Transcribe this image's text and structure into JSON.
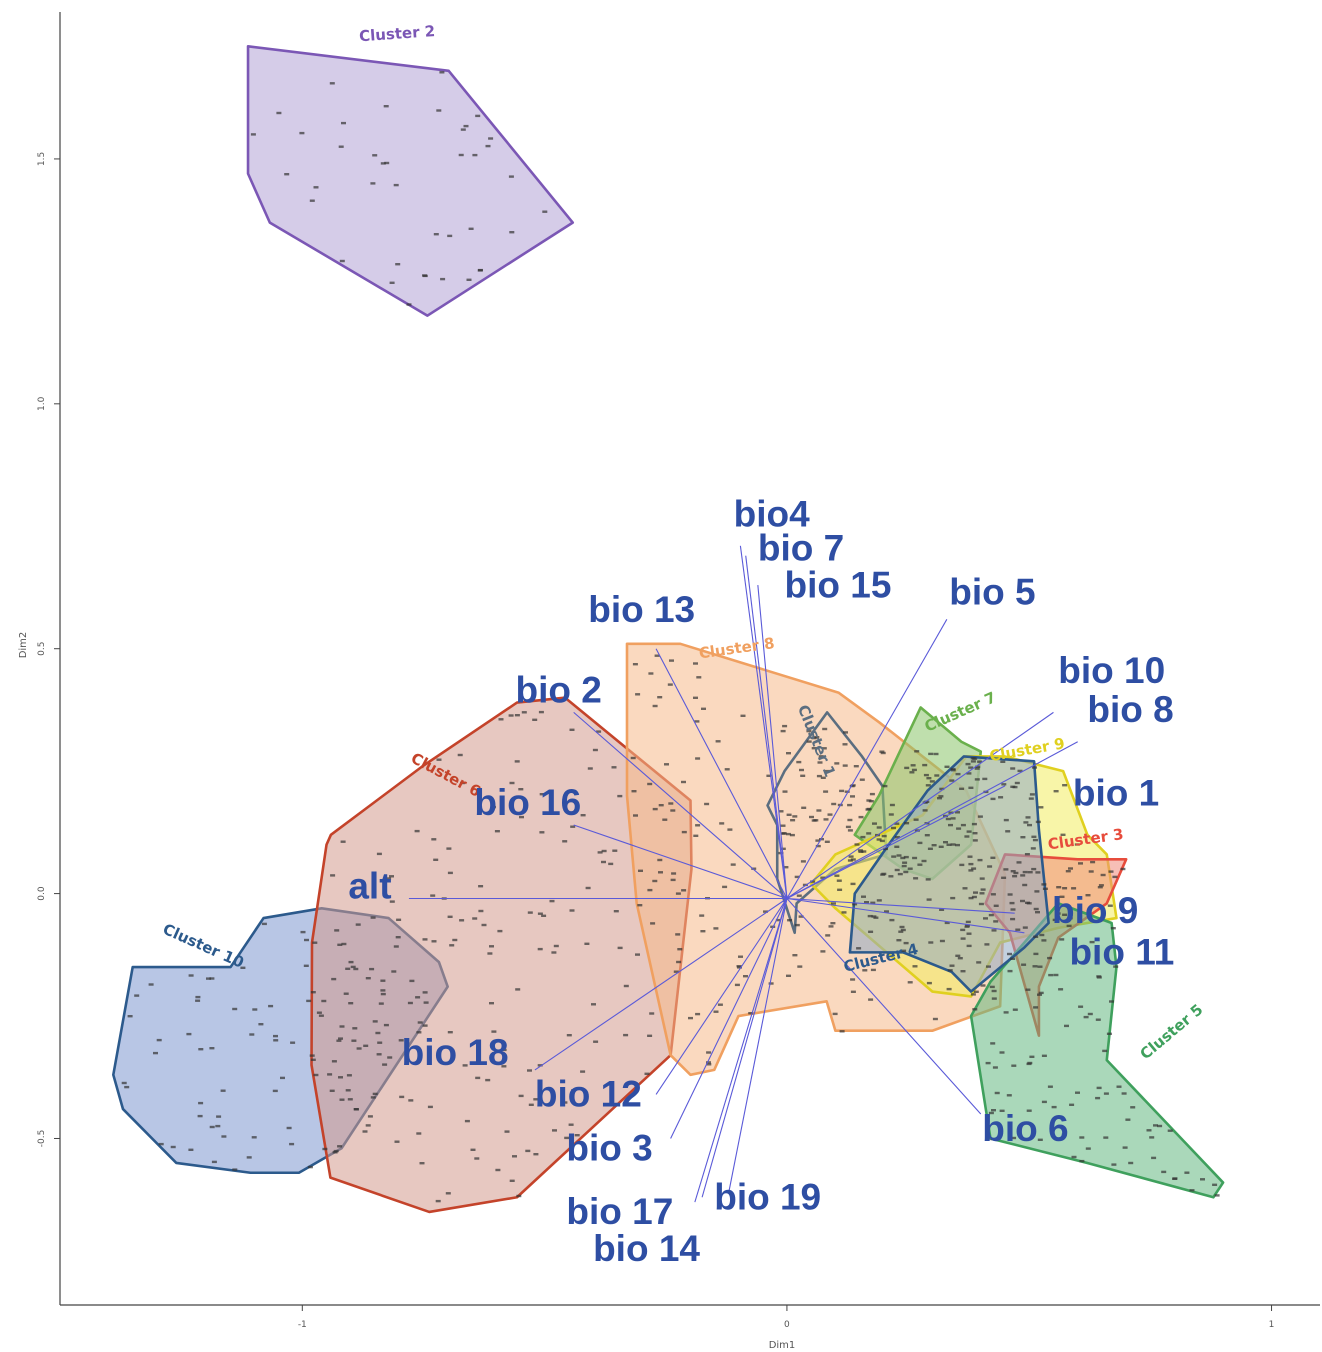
{
  "chart_data": {
    "type": "scatter",
    "xlabel": "Dim1",
    "ylabel": "Dim2",
    "xlim": [
      -1.5,
      1.1
    ],
    "ylim": [
      -0.84,
      1.8
    ],
    "xticks": [
      {
        "value": -1,
        "label": "-1"
      },
      {
        "value": 0,
        "label": "0"
      },
      {
        "value": 1,
        "label": "1"
      }
    ],
    "yticks": [
      {
        "value": -0.5,
        "label": "-0.5"
      },
      {
        "value": 0.0,
        "label": "0.0"
      },
      {
        "value": 0.5,
        "label": "0.5"
      },
      {
        "value": 1.0,
        "label": "1.0"
      },
      {
        "value": 1.5,
        "label": "1.5"
      }
    ],
    "clusters": [
      {
        "name": "Cluster 2",
        "color": "#7b57b5",
        "fill": "#b3a2d6",
        "hull": [
          [
            -1.112,
            1.73
          ],
          [
            -0.698,
            1.68
          ],
          [
            -0.442,
            1.37
          ],
          [
            -0.742,
            1.18
          ],
          [
            -1.067,
            1.37
          ],
          [
            -1.112,
            1.47
          ]
        ],
        "label_at": [
          -0.882,
          1.74
        ],
        "label_rot": 4
      },
      {
        "name": "Cluster 10",
        "color": "#2c5a8c",
        "fill": "#7e97cf",
        "hull": [
          [
            -1.152,
            -0.15
          ],
          [
            -1.148,
            -0.15
          ],
          [
            -1.08,
            -0.05
          ],
          [
            -0.96,
            -0.03
          ],
          [
            -0.822,
            -0.05
          ],
          [
            -0.718,
            -0.14
          ],
          [
            -0.7,
            -0.19
          ],
          [
            -0.919,
            -0.52
          ],
          [
            -1.007,
            -0.57
          ],
          [
            -1.107,
            -0.57
          ],
          [
            -1.26,
            -0.55
          ],
          [
            -1.37,
            -0.44
          ],
          [
            -1.39,
            -0.37
          ],
          [
            -1.35,
            -0.15
          ]
        ],
        "label_at": [
          -1.29,
          -0.08
        ],
        "label_rot": -24
      },
      {
        "name": "Cluster 6",
        "color": "#c4432a",
        "fill": "#d49a8e",
        "hull": [
          [
            -0.941,
            0.12
          ],
          [
            -0.752,
            0.26
          ],
          [
            -0.557,
            0.39
          ],
          [
            -0.458,
            0.4
          ],
          [
            -0.199,
            0.19
          ],
          [
            -0.197,
            0.05
          ],
          [
            -0.24,
            -0.33
          ],
          [
            -0.557,
            -0.62
          ],
          [
            -0.738,
            -0.65
          ],
          [
            -0.942,
            -0.58
          ],
          [
            -0.981,
            -0.35
          ],
          [
            -0.98,
            -0.1
          ],
          [
            -0.95,
            0.1
          ]
        ],
        "label_at": [
          -0.778,
          0.27
        ],
        "label_rot": -28
      },
      {
        "name": "Cluster 8",
        "color": "#f0a060",
        "fill": "#f5b98a",
        "hull": [
          [
            -0.33,
            0.51
          ],
          [
            -0.22,
            0.51
          ],
          [
            0.107,
            0.41
          ],
          [
            0.19,
            0.35
          ],
          [
            0.37,
            0.21
          ],
          [
            0.45,
            0.04
          ],
          [
            0.44,
            -0.23
          ],
          [
            0.3,
            -0.28
          ],
          [
            0.17,
            -0.28
          ],
          [
            0.1,
            -0.28
          ],
          [
            0.082,
            -0.22
          ],
          [
            -0.1,
            -0.25
          ],
          [
            -0.15,
            -0.36
          ],
          [
            -0.199,
            -0.37
          ],
          [
            -0.24,
            -0.33
          ],
          [
            -0.31,
            -0.02
          ],
          [
            -0.33,
            0.2
          ]
        ],
        "label_at": [
          -0.18,
          0.48
        ],
        "label_rot": 8
      },
      {
        "name": "Cluster 1",
        "color": "#5b6e80",
        "fill": "none",
        "hull": [
          [
            0.083,
            0.37
          ],
          [
            0.155,
            0.28
          ],
          [
            0.197,
            0.22
          ],
          [
            0.205,
            0.08
          ],
          [
            0.1,
            0.05
          ],
          [
            0.02,
            -0.02
          ],
          [
            0.016,
            -0.08
          ],
          [
            -0.02,
            0.03
          ],
          [
            -0.02,
            0.14
          ],
          [
            -0.04,
            0.18
          ],
          [
            -0.005,
            0.25
          ]
        ],
        "label_at": [
          0.022,
          0.38
        ],
        "label_rot": -68
      },
      {
        "name": "Cluster 7",
        "color": "#6ab04c",
        "fill": "#8bc46a",
        "hull": [
          [
            0.276,
            0.38
          ],
          [
            0.36,
            0.31
          ],
          [
            0.4,
            0.29
          ],
          [
            0.38,
            0.1
          ],
          [
            0.3,
            0.03
          ],
          [
            0.24,
            0.05
          ],
          [
            0.14,
            0.12
          ],
          [
            0.19,
            0.2
          ]
        ],
        "label_at": [
          0.29,
          0.33
        ],
        "label_rot": 24
      },
      {
        "name": "Cluster 9",
        "color": "#e0d020",
        "fill": "#f2ec60",
        "hull": [
          [
            0.37,
            0.28
          ],
          [
            0.45,
            0.28
          ],
          [
            0.57,
            0.25
          ],
          [
            0.62,
            0.12
          ],
          [
            0.66,
            0.08
          ],
          [
            0.68,
            -0.05
          ],
          [
            0.56,
            -0.07
          ],
          [
            0.44,
            -0.1
          ],
          [
            0.38,
            -0.21
          ],
          [
            0.3,
            -0.2
          ],
          [
            0.1,
            -0.03
          ],
          [
            0.05,
            0.02
          ],
          [
            0.1,
            0.08
          ],
          [
            0.28,
            0.16
          ]
        ],
        "label_at": [
          0.42,
          0.27
        ],
        "label_rot": 10
      },
      {
        "name": "Cluster 3",
        "color": "#e74c3c",
        "fill": "#f08a7a",
        "hull": [
          [
            0.45,
            0.08
          ],
          [
            0.6,
            0.07
          ],
          [
            0.7,
            0.07
          ],
          [
            0.66,
            -0.02
          ],
          [
            0.56,
            -0.09
          ],
          [
            0.52,
            -0.19
          ],
          [
            0.52,
            -0.29
          ],
          [
            0.46,
            -0.08
          ],
          [
            0.41,
            -0.02
          ]
        ],
        "label_at": [
          0.54,
          0.09
        ],
        "label_rot": 8
      },
      {
        "name": "Cluster 5",
        "color": "#3fa05d",
        "fill": "#64b882",
        "hull": [
          [
            0.56,
            -0.02
          ],
          [
            0.67,
            -0.06
          ],
          [
            0.68,
            -0.15
          ],
          [
            0.66,
            -0.34
          ],
          [
            0.9,
            -0.59
          ],
          [
            0.88,
            -0.62
          ],
          [
            0.62,
            -0.55
          ],
          [
            0.42,
            -0.5
          ],
          [
            0.38,
            -0.25
          ],
          [
            0.42,
            -0.18
          ]
        ],
        "label_at": [
          0.74,
          -0.34
        ],
        "label_rot": 40
      },
      {
        "name": "Cluster 4",
        "color": "#2c5a8c",
        "fill": "#8fa9c4",
        "hull": [
          [
            0.365,
            0.28
          ],
          [
            0.51,
            0.27
          ],
          [
            0.52,
            0.13
          ],
          [
            0.54,
            -0.06
          ],
          [
            0.49,
            -0.11
          ],
          [
            0.38,
            -0.2
          ],
          [
            0.34,
            -0.16
          ],
          [
            0.24,
            -0.12
          ],
          [
            0.13,
            -0.12
          ],
          [
            0.14,
            0.0
          ],
          [
            0.21,
            0.1
          ],
          [
            0.29,
            0.21
          ]
        ],
        "label_at": [
          0.12,
          -0.16
        ],
        "label_rot": 14
      }
    ],
    "biplot_arrows": [
      {
        "label": "bio4",
        "x": -0.096,
        "y": 0.71,
        "label_at": [
          -0.11,
          0.75
        ]
      },
      {
        "label": "bio 7",
        "x": -0.085,
        "y": 0.69,
        "label_at": [
          -0.06,
          0.68
        ]
      },
      {
        "label": "bio 15",
        "x": -0.06,
        "y": 0.63,
        "label_at": [
          -0.005,
          0.605
        ]
      },
      {
        "label": "bio 5",
        "x": 0.33,
        "y": 0.56,
        "label_at": [
          0.335,
          0.59
        ]
      },
      {
        "label": "bio 13",
        "x": -0.27,
        "y": 0.5,
        "label_at": [
          -0.41,
          0.555
        ]
      },
      {
        "label": "bio 10",
        "x": 0.55,
        "y": 0.37,
        "label_at": [
          0.56,
          0.43
        ]
      },
      {
        "label": "bio 8",
        "x": 0.6,
        "y": 0.31,
        "label_at": [
          0.62,
          0.35
        ]
      },
      {
        "label": "bio 2",
        "x": -0.44,
        "y": 0.37,
        "label_at": [
          -0.56,
          0.39
        ]
      },
      {
        "label": "bio 1",
        "x": 0.45,
        "y": 0.22,
        "label_at": [
          0.59,
          0.18
        ]
      },
      {
        "label": "bio 16",
        "x": -0.44,
        "y": 0.14,
        "label_at": [
          -0.645,
          0.16
        ]
      },
      {
        "label": "alt",
        "x": -0.78,
        "y": -0.01,
        "label_at": [
          -0.905,
          -0.01
        ]
      },
      {
        "label": "bio 9",
        "x": 0.47,
        "y": -0.04,
        "label_at": [
          0.547,
          -0.06
        ]
      },
      {
        "label": "bio 11",
        "x": 0.49,
        "y": -0.08,
        "label_at": [
          0.583,
          -0.145
        ]
      },
      {
        "label": "bio 18",
        "x": -0.52,
        "y": -0.36,
        "label_at": [
          -0.795,
          -0.35
        ]
      },
      {
        "label": "bio 6",
        "x": 0.4,
        "y": -0.45,
        "label_at": [
          0.403,
          -0.505
        ]
      },
      {
        "label": "bio 12",
        "x": -0.27,
        "y": -0.41,
        "label_at": [
          -0.52,
          -0.435
        ]
      },
      {
        "label": "bio 3",
        "x": -0.24,
        "y": -0.5,
        "label_at": [
          -0.455,
          -0.545
        ]
      },
      {
        "label": "bio 17",
        "x": -0.19,
        "y": -0.63,
        "label_at": [
          -0.455,
          -0.675
        ]
      },
      {
        "label": "bio 19",
        "x": -0.12,
        "y": -0.61,
        "label_at": [
          -0.15,
          -0.645
        ]
      },
      {
        "label": "bio 14",
        "x": -0.175,
        "y": -0.62,
        "label_at": [
          -0.4,
          -0.75
        ]
      }
    ]
  }
}
